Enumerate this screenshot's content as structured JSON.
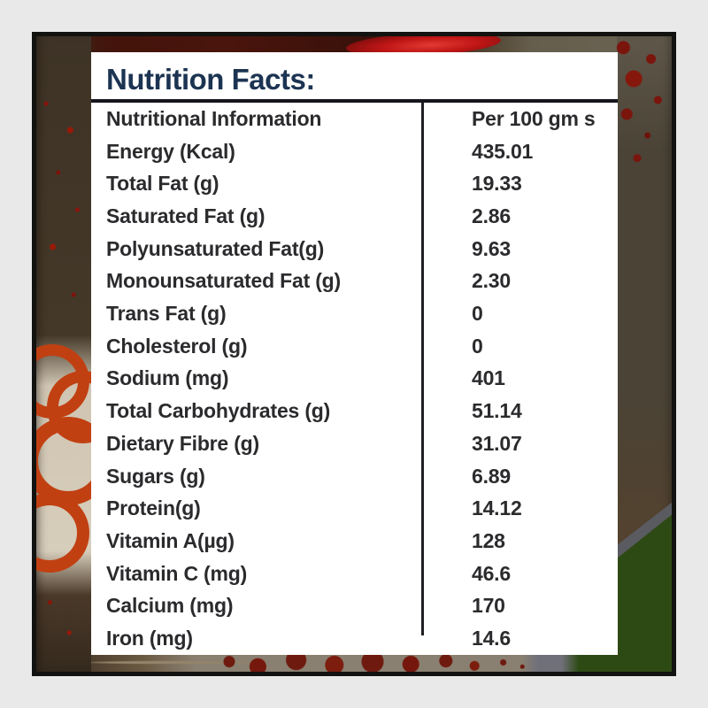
{
  "window": {
    "background_color": "#e9e9e9",
    "frame_border_color": "#121210"
  },
  "packaging": {
    "art_colors": {
      "maroon_band": "#4a150c",
      "pepper_red": "#c01616",
      "olive_brown": "#4a4336",
      "beige": "#d5cab8",
      "ring_red": "#c14012",
      "splatter_red": "#7a150d",
      "green": "#2e4a14",
      "gray_stripe": "#5a5a61"
    }
  },
  "label": {
    "title": "Nutrition Facts:",
    "title_color": "#1c3452",
    "panel_background": "#ffffff",
    "text_color": "#2b2b2e",
    "table": {
      "header": {
        "name": "Nutritional Information",
        "amount": "Per 100 gm s"
      },
      "rows": [
        {
          "name": "Energy (Kcal)",
          "amount": "435.01"
        },
        {
          "name": "Total Fat (g)",
          "amount": "19.33"
        },
        {
          "name": "Saturated Fat (g)",
          "amount": "2.86"
        },
        {
          "name": "Polyunsaturated Fat(g)",
          "amount": "9.63"
        },
        {
          "name": "Monounsaturated Fat (g)",
          "amount": "2.30"
        },
        {
          "name": "Trans Fat (g)",
          "amount": "0"
        },
        {
          "name": "Cholesterol (g)",
          "amount": "0"
        },
        {
          "name": "Sodium (mg)",
          "amount": "401"
        },
        {
          "name": "Total Carbohydrates (g)",
          "amount": "51.14"
        },
        {
          "name": "Dietary Fibre (g)",
          "amount": "31.07"
        },
        {
          "name": "Sugars (g)",
          "amount": "6.89"
        },
        {
          "name": "Protein(g)",
          "amount": "14.12"
        },
        {
          "name": "Vitamin A(µg)",
          "amount": "128"
        },
        {
          "name": "Vitamin C (mg)",
          "amount": "46.6"
        },
        {
          "name": "Calcium (mg)",
          "amount": "170"
        },
        {
          "name": "Iron (mg)",
          "amount": "14.6"
        }
      ]
    }
  }
}
